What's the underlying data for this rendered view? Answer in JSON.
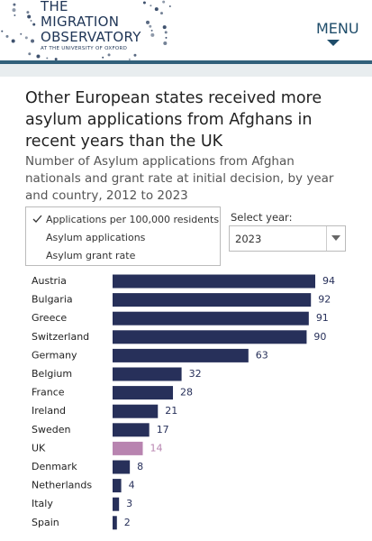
{
  "header": {
    "logo": [
      "THE",
      "MIGRATION",
      "OBSERVATORY",
      "AT THE UNIVERSITY OF OXFORD"
    ],
    "menu": "MENU"
  },
  "controls": {
    "options": [
      "Applications per 100,000 residents",
      "Asylum applications",
      "Asylum grant rate"
    ],
    "year_label": "Select year:",
    "year": "2023"
  },
  "chart_data": {
    "type": "bar",
    "orientation": "horizontal",
    "title": "Other European states received more asylum applications from Afghans in recent years than the UK",
    "subtitle": "Number of Asylum applications from Afghan nationals and grant rate at initial decision, by year and country, 2012 to 2023",
    "categories": [
      "Austria",
      "Bulgaria",
      "Greece",
      "Switzerland",
      "Germany",
      "Belgium",
      "France",
      "Ireland",
      "Sweden",
      "UK",
      "Denmark",
      "Netherlands",
      "Italy",
      "Spain"
    ],
    "values": [
      94,
      92,
      91,
      90,
      63,
      32,
      28,
      21,
      17,
      14,
      8,
      4,
      3,
      2
    ],
    "colors": [
      "#27305a",
      "#27305a",
      "#27305a",
      "#27305a",
      "#27305a",
      "#27305a",
      "#27305a",
      "#27305a",
      "#27305a",
      "#b884b0",
      "#27305a",
      "#27305a",
      "#27305a",
      "#27305a"
    ]
  }
}
